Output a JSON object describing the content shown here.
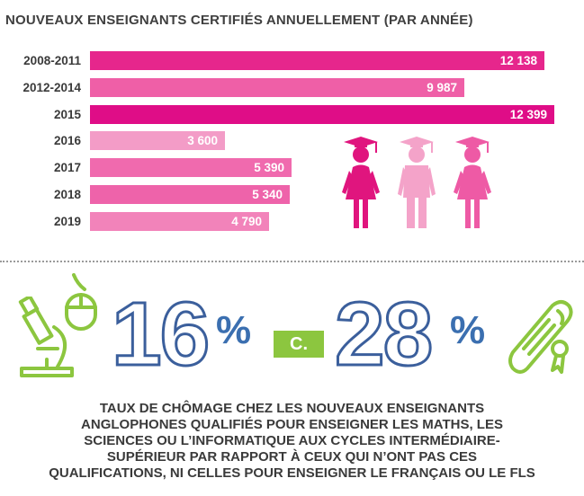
{
  "title": "NOUVEAUX ENSEIGNANTS CERTIFIÉS ANNUELLEMENT (PAR ANNÉE)",
  "chart_data": {
    "type": "bar",
    "orientation": "horizontal",
    "title": "NOUVEAUX ENSEIGNANTS CERTIFIÉS ANNUELLEMENT (PAR ANNÉE)",
    "categories": [
      "2008-2011",
      "2012-2014",
      "2015",
      "2016",
      "2017",
      "2018",
      "2019"
    ],
    "values": [
      12138,
      9987,
      12399,
      3600,
      5390,
      5340,
      4790
    ],
    "value_labels": [
      "12 138",
      "9 987",
      "12 399",
      "3 600",
      "5 390",
      "5 340",
      "4 790"
    ],
    "colors": [
      "#e6268c",
      "#ef5fa7",
      "#df0d87",
      "#f39cc7",
      "#f06aae",
      "#ee63aa",
      "#f283ba"
    ],
    "xlim": [
      0,
      12399
    ]
  },
  "stats": {
    "left_value": "16",
    "left_unit": "%",
    "separator": "C.",
    "right_value": "28",
    "right_unit": "%",
    "accent_color": "#8cc63f",
    "number_color": "#3b5f9c"
  },
  "caption_lines": [
    "TAUX DE CHÔMAGE CHEZ LES NOUVEAUX ENSEIGNANTS",
    "ANGLOPHONES QUALIFIÉS POUR ENSEIGNER LES MATHS, LES",
    "SCIENCES OU L’INFORMATIQUE AUX CYCLES INTERMÉDIAIRE-",
    "SUPÉRIEUR PAR RAPPORT À CEUX QUI N’ONT PAS CES",
    "QUALIFICATIONS, NI CELLES POUR ENSEIGNER LE FRANÇAIS OU LE FLS"
  ],
  "icons": [
    "graduate-female-icon",
    "graduate-male-icon",
    "graduate-female-icon",
    "microscope-icon",
    "computer-mouse-icon",
    "diploma-icon"
  ]
}
